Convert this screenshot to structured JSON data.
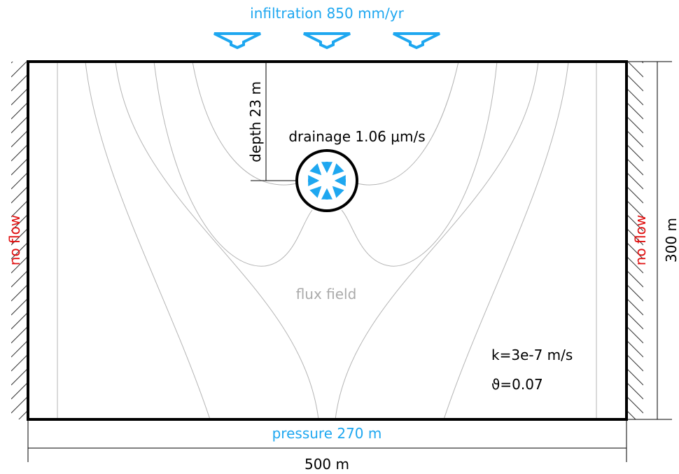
{
  "top_bc": {
    "label": "infiltration 850 mm/yr"
  },
  "bottom_bc": {
    "label": "pressure 270 m"
  },
  "left_bc": {
    "label": "no flow"
  },
  "right_bc": {
    "label": "no flow"
  },
  "drain": {
    "label": "drainage 1.06 μm/s",
    "depth_label": "depth 23 m"
  },
  "dimensions": {
    "width": "500 m",
    "height": "300 m"
  },
  "field": {
    "label": "flux field"
  },
  "params": {
    "k": "k=3e-7 m/s",
    "theta": "ϑ=0.07"
  },
  "colors": {
    "boundary_blue": "#1ea7f0",
    "no_flow_red": "#e01010",
    "streamline": "#b4b4b4",
    "field_label": "#aaaaaa"
  }
}
